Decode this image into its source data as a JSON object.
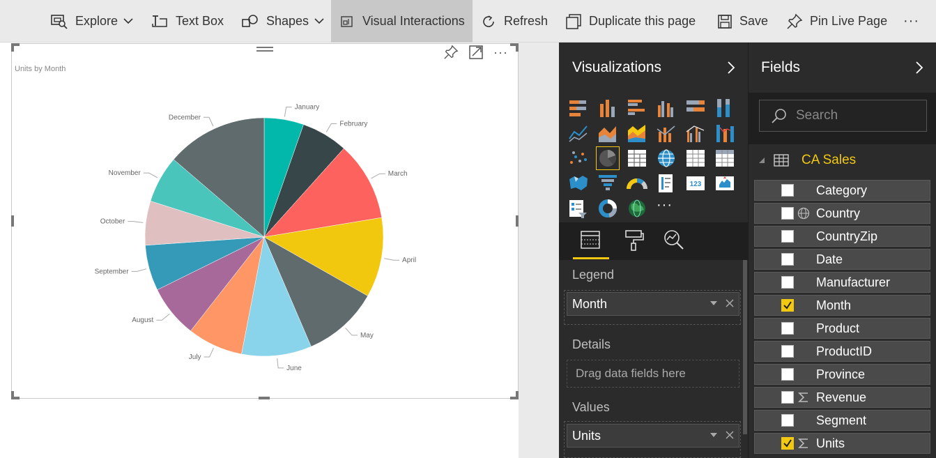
{
  "toolbar": {
    "explore": "Explore",
    "text_box": "Text Box",
    "shapes": "Shapes",
    "visual_interactions": "Visual Interactions",
    "refresh": "Refresh",
    "duplicate": "Duplicate this page",
    "save": "Save",
    "pin_live_page": "Pin Live Page",
    "more": "···"
  },
  "visual": {
    "title": "Units by Month"
  },
  "chart_data": {
    "type": "pie",
    "title": "Units by Month",
    "categories": [
      "January",
      "February",
      "March",
      "April",
      "May",
      "June",
      "July",
      "August",
      "September",
      "October",
      "November",
      "December"
    ],
    "values": [
      5.2,
      6.1,
      10.4,
      10.5,
      10.0,
      9.2,
      7.3,
      6.9,
      6.0,
      5.8,
      6.2,
      13.3
    ],
    "colors": [
      "#01b8aa",
      "#374649",
      "#fd625e",
      "#f2c80f",
      "#5f6b6d",
      "#8ad4eb",
      "#fe9666",
      "#a66999",
      "#3599b8",
      "#dfbfbf",
      "#4ac5bb",
      "#5f6b6d"
    ]
  },
  "visualizations_pane": {
    "title": "Visualizations",
    "wells": {
      "legend_label": "Legend",
      "legend_field": "Month",
      "details_label": "Details",
      "details_placeholder": "Drag data fields here",
      "values_label": "Values",
      "values_field": "Units"
    },
    "more": "···"
  },
  "fields_pane": {
    "title": "Fields",
    "search_placeholder": "Search",
    "table_name": "CA Sales",
    "fields": [
      {
        "name": "Category",
        "checked": false,
        "type": ""
      },
      {
        "name": "Country",
        "checked": false,
        "type": "globe"
      },
      {
        "name": "CountryZip",
        "checked": false,
        "type": ""
      },
      {
        "name": "Date",
        "checked": false,
        "type": ""
      },
      {
        "name": "Manufacturer",
        "checked": false,
        "type": ""
      },
      {
        "name": "Month",
        "checked": true,
        "type": ""
      },
      {
        "name": "Product",
        "checked": false,
        "type": ""
      },
      {
        "name": "ProductID",
        "checked": false,
        "type": ""
      },
      {
        "name": "Province",
        "checked": false,
        "type": ""
      },
      {
        "name": "Revenue",
        "checked": false,
        "type": "sigma"
      },
      {
        "name": "Segment",
        "checked": false,
        "type": ""
      },
      {
        "name": "Units",
        "checked": true,
        "type": "sigma"
      }
    ]
  }
}
